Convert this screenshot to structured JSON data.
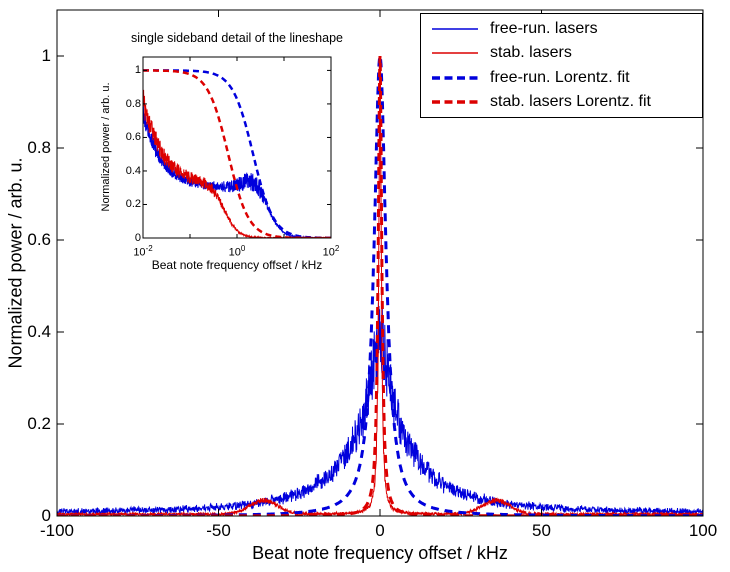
{
  "figure": {
    "bg": "#ffffff",
    "axis_color": "#000000",
    "main": {
      "xlabel": "Beat note frequency offset / kHz",
      "ylabel": "Normalized power / arb. u.",
      "xticks": [
        {
          "v": -100,
          "label": "-100"
        },
        {
          "v": -50,
          "label": "-50"
        },
        {
          "v": 0,
          "label": "0"
        },
        {
          "v": 50,
          "label": "50"
        },
        {
          "v": 100,
          "label": "100"
        }
      ],
      "yticks": [
        {
          "v": 0,
          "label": "0"
        },
        {
          "v": 0.2,
          "label": "0.2"
        },
        {
          "v": 0.4,
          "label": "0.4"
        },
        {
          "v": 0.6,
          "label": "0.6"
        },
        {
          "v": 0.8,
          "label": "0.8"
        },
        {
          "v": 1,
          "label": "1"
        }
      ]
    },
    "legend": {
      "position": "top-right"
    },
    "inset": {
      "title": "single sideband detail of the lineshape",
      "xlabel": "Beat note frequency offset / kHz",
      "ylabel": "Normalized power / arb. u.",
      "yticks": [
        {
          "v": 0,
          "label": "0"
        },
        {
          "v": 0.2,
          "label": "0.2"
        },
        {
          "v": 0.4,
          "label": "0.4"
        },
        {
          "v": 0.6,
          "label": "0.6"
        },
        {
          "v": 0.8,
          "label": "0.8"
        },
        {
          "v": 1,
          "label": "1"
        }
      ],
      "xticks": [
        {
          "t": -2,
          "base": "10",
          "exp": "-2"
        },
        {
          "t": 0,
          "base": "10",
          "exp": "0"
        },
        {
          "t": 2,
          "base": "10",
          "exp": "2"
        }
      ],
      "minor_t": [
        -1,
        1
      ]
    }
  },
  "chart_data": [
    {
      "id": "main",
      "type": "line",
      "title": "",
      "xlabel": "Beat note frequency offset / kHz",
      "ylabel": "Normalized power / arb. u.",
      "xlim": [
        -100,
        100
      ],
      "ylim": [
        0,
        1
      ],
      "xticks": [
        -100,
        -50,
        0,
        50,
        100
      ],
      "yticks": [
        0,
        0.2,
        0.4,
        0.6,
        0.8,
        1
      ],
      "grid": false,
      "legend_position": "top-right",
      "series": [
        {
          "name": "free-run. lasers",
          "color": "#0000dc",
          "line": "solid",
          "width": 1,
          "model": {
            "kind": "noisy-double-lorentzian",
            "a1": 0.21,
            "g1": 3.5,
            "a2": 0.17,
            "g2": 14,
            "baseline": 0.006,
            "noise_mult": 0.22,
            "noise_add": 0.006
          },
          "sample_x": [
            -100,
            -40,
            -20,
            -10,
            -5,
            -2,
            0,
            2,
            5,
            10,
            20,
            40,
            100
          ],
          "sample_y": [
            0.01,
            0.026,
            0.068,
            0.142,
            0.226,
            0.331,
            0.386,
            0.331,
            0.226,
            0.142,
            0.068,
            0.026,
            0.01
          ]
        },
        {
          "name": "stab. lasers",
          "color": "#dc0000",
          "line": "solid",
          "width": 1,
          "model": {
            "kind": "noisy-lorentzian-with-sidebands",
            "peak": 1.0,
            "g": 0.45,
            "sb_pos": 36,
            "sb_amp": 0.03,
            "sb_w": 6,
            "baseline": 0.004,
            "noise_mult": 0.12,
            "noise_add": 0.003
          },
          "sample_x": [
            -100,
            -36,
            -10,
            -2,
            -1,
            0,
            1,
            2,
            10,
            36,
            100
          ],
          "sample_y": [
            0.004,
            0.035,
            0.006,
            0.05,
            0.17,
            1.0,
            0.17,
            0.05,
            0.006,
            0.035,
            0.004
          ]
        },
        {
          "name": "free-run. Lorentz. fit",
          "color": "#0000dc",
          "line": "dashed",
          "width": 3,
          "model": {
            "kind": "lorentzian",
            "peak": 1.0,
            "hwhm_kHz": 2.2
          },
          "sample_x": [
            -100,
            -20,
            -10,
            -5,
            -2,
            -1,
            0,
            1,
            2,
            5,
            10,
            20,
            100
          ],
          "sample_y": [
            0.0005,
            0.012,
            0.046,
            0.162,
            0.547,
            0.829,
            1.0,
            0.829,
            0.547,
            0.162,
            0.046,
            0.012,
            0.0005
          ]
        },
        {
          "name": "stab. lasers Lorentz. fit",
          "color": "#dc0000",
          "line": "dashed",
          "width": 3,
          "model": {
            "kind": "lorentzian",
            "peak": 1.0,
            "hwhm_kHz": 0.65
          },
          "sample_x": [
            -100,
            -10,
            -5,
            -2,
            -1,
            -0.5,
            0,
            0.5,
            1,
            2,
            5,
            10,
            100
          ],
          "sample_y": [
            0.0,
            0.004,
            0.017,
            0.095,
            0.297,
            0.628,
            1.0,
            0.628,
            0.297,
            0.095,
            0.017,
            0.004,
            0.0
          ]
        }
      ]
    },
    {
      "id": "inset",
      "type": "line",
      "title": "single sideband detail of the lineshape",
      "xlabel": "Beat note frequency offset / kHz",
      "ylabel": "Normalized power / arb. u.",
      "xscale": "log",
      "xlim": [
        0.01,
        100
      ],
      "ylim": [
        0,
        1
      ],
      "yticks": [
        0,
        0.2,
        0.4,
        0.6,
        0.8,
        1
      ],
      "xticks": [
        0.01,
        1,
        100
      ],
      "series": [
        {
          "name": "free-run. lasers",
          "color": "#0000dc",
          "line": "solid",
          "width": 1,
          "model": {
            "kind": "noisy-pink-plus-bump",
            "floor": 0.3,
            "amp": 0.45,
            "alpha": 1.1,
            "cap": 0.78,
            "bump_t": 0.35,
            "bump_amp": 0.06,
            "bump_w": 0.3,
            "cut": 5,
            "noise_mult": 0.08,
            "bump_noise": 0.09
          },
          "sample_x": [
            0.01,
            0.03,
            0.1,
            0.3,
            1,
            3,
            10,
            30,
            100
          ],
          "sample_y": [
            0.75,
            0.43,
            0.34,
            0.31,
            0.32,
            0.29,
            0.034,
            0.001,
            0.0
          ]
        },
        {
          "name": "stab. lasers",
          "color": "#dc0000",
          "line": "solid",
          "width": 1,
          "model": {
            "kind": "noisy-pink",
            "floor": 0.32,
            "amp": 0.5,
            "alpha": 1.05,
            "cap": 0.82,
            "cut": 0.55,
            "noise_mult": 0.1
          },
          "sample_x": [
            0.01,
            0.03,
            0.1,
            0.3,
            1,
            3,
            10,
            100
          ],
          "sample_y": [
            0.82,
            0.48,
            0.36,
            0.29,
            0.046,
            0.002,
            0.0,
            0.0
          ]
        },
        {
          "name": "free-run. Lorentz. fit",
          "color": "#0000dc",
          "line": "dashed",
          "width": 2.5,
          "model": {
            "kind": "lorentzian",
            "hwhm_kHz": 2.2
          },
          "sample_x": [
            0.01,
            0.1,
            0.3,
            1,
            3,
            10,
            30,
            100
          ],
          "sample_y": [
            1.0,
            0.998,
            0.982,
            0.829,
            0.35,
            0.046,
            0.005,
            0.0
          ]
        },
        {
          "name": "stab. lasers Lorentz. fit",
          "color": "#dc0000",
          "line": "dashed",
          "width": 2.5,
          "model": {
            "kind": "lorentzian",
            "hwhm_kHz": 0.65
          },
          "sample_x": [
            0.01,
            0.1,
            0.3,
            1,
            3,
            10,
            100
          ],
          "sample_y": [
            1.0,
            0.977,
            0.825,
            0.297,
            0.045,
            0.004,
            0.0
          ]
        }
      ]
    }
  ]
}
